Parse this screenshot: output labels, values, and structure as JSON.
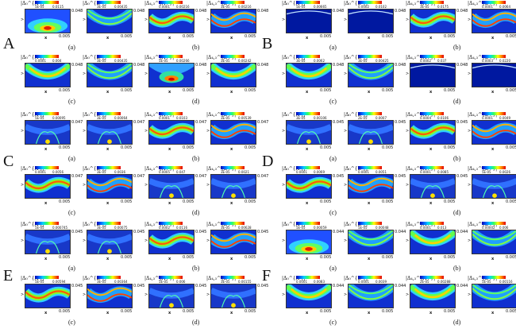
{
  "axis": {
    "x_label": "x",
    "y_label": ">"
  },
  "figures": [
    {
      "letter": "A",
      "origin": [
        26,
        0
      ],
      "letter_pos": [
        4,
        44
      ],
      "cells": [
        {
          "label": "|Δ₀^{A-}|",
          "min": "5E-05",
          "max": "0.0115",
          "ymax": "0.048",
          "x_tick": "0.005",
          "pattern": "blob-bottom"
        },
        {
          "label": "|Δ₀^{B-}|",
          "min": "3E-05",
          "max": "0.00435",
          "ymax": "0.048",
          "x_tick": "0.005",
          "pattern": "arc-double"
        },
        {
          "label": "|Δ₄,₃^{A+}|",
          "min": "0.0001",
          "max": "0.00216",
          "ymax": "0.048",
          "x_tick": "0.005",
          "pattern": "wave-band"
        },
        {
          "label": "|Δ₄,₃^{B+}|",
          "min": "3E-05",
          "max": "0.00216",
          "ymax": "0.048",
          "x_tick": "0.005",
          "pattern": "wave-double"
        },
        {
          "label": "|Δ₀^{A-}|",
          "min": "0.0001",
          "max": "0.004",
          "ymax": "0.048",
          "x_tick": "0.005",
          "pattern": "arc-band"
        },
        {
          "label": "|Δ₀^{B-}|",
          "min": "3E-05",
          "max": "0.00435",
          "ymax": "0.048",
          "x_tick": "0.005",
          "pattern": "arc-double"
        },
        {
          "label": "|Δ₄,₃^{A+}|",
          "min": "5E-05",
          "max": "0.00266",
          "ymax": "0.048",
          "x_tick": "0.005",
          "pattern": "blob-center"
        },
        {
          "label": "|Δ₄,₃^{B+}|",
          "min": "3E-05",
          "max": "0.00242",
          "ymax": "0.048",
          "x_tick": "0.005",
          "pattern": "arc-band"
        }
      ],
      "sub_labels": [
        "(a)",
        "(b)",
        "(c)",
        "(d)"
      ]
    },
    {
      "letter": "B",
      "origin": [
        355,
        0
      ],
      "letter_pos": [
        330,
        44
      ],
      "cells": [
        {
          "label": "|Δ₀^{A-}|",
          "min": "5E-05",
          "max": "0.00665",
          "ymax": "0.048",
          "x_tick": "0.005",
          "pattern": "dark-line"
        },
        {
          "label": "|Δ₀^{B-}|",
          "min": "0.0002",
          "max": "0.0102",
          "ymax": "0.048",
          "x_tick": "0.005",
          "pattern": "dark-line"
        },
        {
          "label": "|Δ₄,₃^{A+}|",
          "min": "3E-05",
          "max": "0.0175",
          "ymax": "0.048",
          "x_tick": "0.005",
          "pattern": "wave-band"
        },
        {
          "label": "|Δ₄,₃^{B+}|",
          "min": "0.0001",
          "max": "0.0064",
          "ymax": "0.048",
          "x_tick": "0.005",
          "pattern": "wave-double"
        },
        {
          "label": "|Δ₀^{A-}|",
          "min": "3E-05",
          "max": "0.0062",
          "ymax": "0.048",
          "x_tick": "0.005",
          "pattern": "arc-band"
        },
        {
          "label": "|Δ₀^{B-}|",
          "min": "3E-05",
          "max": "0.00425",
          "ymax": "0.048",
          "x_tick": "0.005",
          "pattern": "arc-double"
        },
        {
          "label": "|Δ₄,₃^{A+}|",
          "min": "0.0002",
          "max": "0.037",
          "ymax": "0.048",
          "x_tick": "0.005",
          "pattern": "dark-line"
        },
        {
          "label": "|Δ₄,₃^{B+}|",
          "min": "0.0003",
          "max": "0.0220",
          "ymax": "0.048",
          "x_tick": "0.005",
          "pattern": "dark-line"
        }
      ],
      "sub_labels": [
        "(a)",
        "(b)",
        "(c)",
        "(d)"
      ]
    },
    {
      "letter": "C",
      "origin": [
        26,
        140
      ],
      "letter_pos": [
        4,
        192
      ],
      "cells": [
        {
          "label": "|Δ₀^{A-}|",
          "min": "5E-05",
          "max": "0.00095",
          "ymax": "0.047",
          "x_tick": "0.005",
          "pattern": "dark-arc"
        },
        {
          "label": "|Δ₀^{B-}|",
          "min": "3E-05",
          "max": "0.00064",
          "ymax": "0.047",
          "x_tick": "0.005",
          "pattern": "dark-arc"
        },
        {
          "label": "|Δ₄,₃^{A+}|",
          "min": "0.0001",
          "max": "0.0103",
          "ymax": "0.047",
          "x_tick": "0.005",
          "pattern": "wave-band"
        },
        {
          "label": "|Δ₄,₃^{B+}|",
          "min": "3E-05",
          "max": "0.00539",
          "ymax": "0.047",
          "x_tick": "0.005",
          "pattern": "wave-double"
        },
        {
          "label": "|Δ₀^{A-}|",
          "min": "0.0001",
          "max": "0.0056",
          "ymax": "0.047",
          "x_tick": "0.005",
          "pattern": "wave-band"
        },
        {
          "label": "|Δ₀^{B-}|",
          "min": "3E-05",
          "max": "0.0036",
          "ymax": "0.047",
          "x_tick": "0.005",
          "pattern": "wave-double"
        },
        {
          "label": "|Δ₄,₃^{A+}|",
          "min": "0.0005",
          "max": "0.047",
          "ymax": "0.047",
          "x_tick": "0.005",
          "pattern": "dark-arc"
        },
        {
          "label": "|Δ₄,₃^{B+}|",
          "min": "3E-05",
          "max": "0.0021",
          "ymax": "0.047",
          "x_tick": "0.005",
          "pattern": "dark-arc"
        }
      ],
      "sub_labels": [
        "(a)",
        "(b)",
        "(c)",
        "(d)"
      ]
    },
    {
      "letter": "D",
      "origin": [
        355,
        140
      ],
      "letter_pos": [
        330,
        192
      ],
      "cells": [
        {
          "label": "|Δ₀^{A-}|",
          "min": "3E-05",
          "max": "0.00106",
          "ymax": "0.045",
          "x_tick": "0.005",
          "pattern": "dark-arc"
        },
        {
          "label": "|Δ₀^{B-}|",
          "min": "2E-05",
          "max": "0.0007",
          "ymax": "0.045",
          "x_tick": "0.005",
          "pattern": "dark-arc"
        },
        {
          "label": "|Δ₄,₃^{A+}|",
          "min": "0.0004",
          "max": "0.0106",
          "ymax": "0.045",
          "x_tick": "0.005",
          "pattern": "wave-band"
        },
        {
          "label": "|Δ₄,₃^{B+}|",
          "min": "0.0001",
          "max": "0.0049",
          "ymax": "0.045",
          "x_tick": "0.005",
          "pattern": "wave-double"
        },
        {
          "label": "|Δ₀^{A-}|",
          "min": "0.0001",
          "max": "0.0069",
          "ymax": "0.045",
          "x_tick": "0.005",
          "pattern": "wave-band"
        },
        {
          "label": "|Δ₀^{B-}|",
          "min": "0.0001",
          "max": "0.0051",
          "ymax": "0.045",
          "x_tick": "0.005",
          "pattern": "wave-double"
        },
        {
          "label": "|Δ₄,₃^{A+}|",
          "min": "0.0001",
          "max": "0.0085",
          "ymax": "0.045",
          "x_tick": "0.005",
          "pattern": "dark-arc"
        },
        {
          "label": "|Δ₄,₃^{B+}|",
          "min": "5E-05",
          "max": "0.0026",
          "ymax": "0.045",
          "x_tick": "0.005",
          "pattern": "dark-arc"
        }
      ],
      "sub_labels": [
        "(a)",
        "(b)",
        "(c)",
        "(d)"
      ]
    },
    {
      "letter": "E",
      "origin": [
        26,
        278
      ],
      "letter_pos": [
        4,
        336
      ],
      "cells": [
        {
          "label": "|Δ₀^{A-}|",
          "min": "5E-05",
          "max": "0.000745",
          "ymax": "0.045",
          "x_tick": "0.005",
          "pattern": "dark-arc"
        },
        {
          "label": "|Δ₀^{B-}|",
          "min": "3E-05",
          "max": "0.00075",
          "ymax": "0.045",
          "x_tick": "0.005",
          "pattern": "dark-arc"
        },
        {
          "label": "|Δ₄,₃^{A+}|",
          "min": "0.0002",
          "max": "0.0116",
          "ymax": "0.045",
          "x_tick": "0.005",
          "pattern": "wave-band"
        },
        {
          "label": "|Δ₄,₃^{B+}|",
          "min": "3E-05",
          "max": "0.00628",
          "ymax": "0.045",
          "x_tick": "0.005",
          "pattern": "wave-double"
        },
        {
          "label": "|Δ₀^{A-}|",
          "min": "5E-05",
          "max": "0.00594",
          "ymax": "0.045",
          "x_tick": "0.005",
          "pattern": "wave-band"
        },
        {
          "label": "|Δ₀^{B-}|",
          "min": "3E-05",
          "max": "0.00364",
          "ymax": "0.045",
          "x_tick": "0.005",
          "pattern": "wave-double"
        },
        {
          "label": "|Δ₄,₃^{A+}|",
          "min": "5E-05",
          "max": "0.006",
          "ymax": "0.045",
          "x_tick": "0.005",
          "pattern": "dark-arc"
        },
        {
          "label": "|Δ₄,₃^{B+}|",
          "min": "3E-05",
          "max": "0.00155",
          "ymax": "0.045",
          "x_tick": "0.005",
          "pattern": "dark-arc"
        }
      ],
      "sub_labels": [
        "(a)",
        "(b)",
        "(c)",
        "(d)"
      ]
    },
    {
      "letter": "F",
      "origin": [
        355,
        278
      ],
      "letter_pos": [
        330,
        336
      ],
      "cells": [
        {
          "label": "|Δ₀^{A-}|",
          "min": "5E-05",
          "max": "0.00059",
          "ymax": "0.044",
          "x_tick": "0.005",
          "pattern": "blob-bottom"
        },
        {
          "label": "|Δ₀^{B-}|",
          "min": "5E-05",
          "max": "0.00048",
          "ymax": "0.044",
          "x_tick": "0.005",
          "pattern": "arc-double"
        },
        {
          "label": "|Δ₄,₃^{A+}|",
          "min": "0.0001",
          "max": "0.013",
          "ymax": "0.044",
          "x_tick": "0.005",
          "pattern": "arc-band"
        },
        {
          "label": "|Δ₄,₃^{B+}|",
          "min": "0.00002",
          "max": "0.006",
          "ymax": "0.044",
          "x_tick": "0.005",
          "pattern": "arc-double"
        },
        {
          "label": "|Δ₀^{A-}|",
          "min": "0.0001",
          "max": "0.0083",
          "ymax": "0.044",
          "x_tick": "0.005",
          "pattern": "arc-band"
        },
        {
          "label": "|Δ₀^{B-}|",
          "min": "0.0001",
          "max": "0.0039",
          "ymax": "0.044",
          "x_tick": "0.005",
          "pattern": "arc-double"
        },
        {
          "label": "|Δ₄,₃^{A+}|",
          "min": "2E-05",
          "max": "0.00288",
          "ymax": "0.044",
          "x_tick": "0.005",
          "pattern": "arc-band"
        },
        {
          "label": "|Δ₄,₃^{B+}|",
          "min": "5E-05",
          "max": "0.00116",
          "ymax": "0.044",
          "x_tick": "0.005",
          "pattern": "arc-double"
        }
      ],
      "sub_labels": [
        "(a)",
        "(b)",
        "(c)",
        "(d)"
      ]
    }
  ]
}
